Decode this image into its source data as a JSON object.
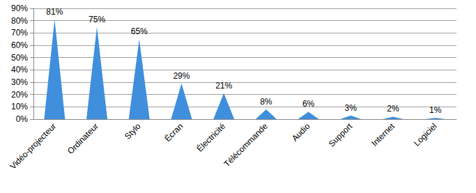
{
  "chart_data": {
    "type": "bar",
    "categories": [
      "Vidéo-projecteur",
      "Ordinateur",
      "Stylo",
      "Écran",
      "Électricité",
      "Télécommande",
      "Audio",
      "Support",
      "Internet",
      "Logiciel"
    ],
    "values": [
      81,
      75,
      65,
      29,
      21,
      8,
      6,
      3,
      2,
      1
    ],
    "value_labels": [
      "81%",
      "75%",
      "65%",
      "29%",
      "21%",
      "8%",
      "6%",
      "3%",
      "2%",
      "1%"
    ],
    "color": "#3f8fdc",
    "ylim": [
      0,
      90
    ],
    "yticks": [
      {
        "value": 0,
        "label": "0%"
      },
      {
        "value": 10,
        "label": "10%"
      },
      {
        "value": 20,
        "label": "20%"
      },
      {
        "value": 30,
        "label": "30%"
      },
      {
        "value": 40,
        "label": "40%"
      },
      {
        "value": 50,
        "label": "50%"
      },
      {
        "value": 60,
        "label": "60%"
      },
      {
        "value": 70,
        "label": "70%"
      },
      {
        "value": 80,
        "label": "80%"
      },
      {
        "value": 90,
        "label": "90%"
      }
    ],
    "grid": true,
    "data_labels": true
  }
}
